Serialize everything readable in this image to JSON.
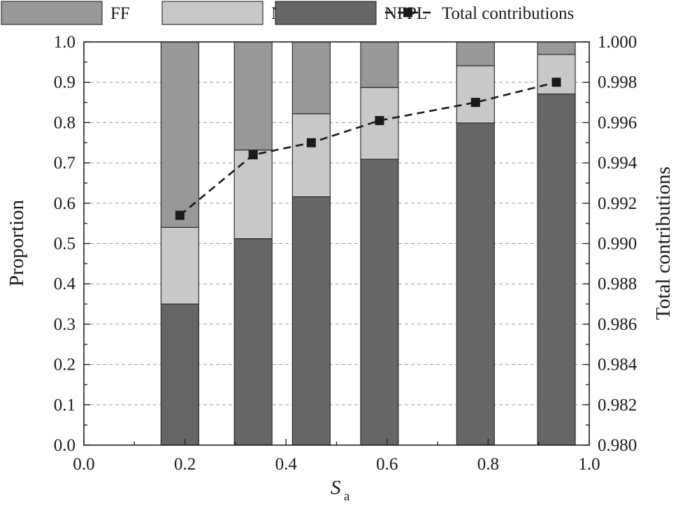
{
  "chart_data": {
    "type": "bar",
    "stacked": true,
    "xlabel": "S",
    "xlabel_subscript": "a",
    "ylabel": "Proportion",
    "y2label": "Total contributions",
    "xlim": [
      0.0,
      1.0
    ],
    "ylim": [
      0.0,
      1.0
    ],
    "y2lim": [
      0.98,
      1.0
    ],
    "x_ticks": [
      "0.0",
      "0.2",
      "0.4",
      "0.6",
      "0.8",
      "1.0"
    ],
    "y_ticks": [
      "0.0",
      "0.1",
      "0.2",
      "0.3",
      "0.4",
      "0.5",
      "0.6",
      "0.7",
      "0.8",
      "0.9",
      "1.0"
    ],
    "y2_ticks": [
      "0.980",
      "0.982",
      "0.984",
      "0.986",
      "0.988",
      "0.990",
      "0.992",
      "0.994",
      "0.996",
      "0.998",
      "1.000"
    ],
    "grid": "horizontal-dashed",
    "legend_placement": "top",
    "x": [
      0.19,
      0.335,
      0.45,
      0.585,
      0.775,
      0.935
    ],
    "series": [
      {
        "name": "NFPL",
        "color": "#666666",
        "values": [
          0.35,
          0.512,
          0.616,
          0.709,
          0.799,
          0.871
        ]
      },
      {
        "name": "NFNP",
        "color": "#c8c8c8",
        "values": [
          0.19,
          0.22,
          0.206,
          0.178,
          0.142,
          0.098
        ]
      },
      {
        "name": "FF",
        "color": "#989898",
        "values": [
          0.46,
          0.268,
          0.178,
          0.113,
          0.059,
          0.031
        ]
      }
    ],
    "line_series": {
      "name": "Total contributions",
      "axis": "right",
      "color": "#1a1a1a",
      "x": [
        0.19,
        0.335,
        0.45,
        0.585,
        0.775,
        0.935
      ],
      "values": [
        0.9914,
        0.9944,
        0.995,
        0.9961,
        0.997,
        0.998
      ]
    },
    "legend": [
      "FF",
      "NFNP",
      "NFPL",
      "Total contributions"
    ]
  }
}
